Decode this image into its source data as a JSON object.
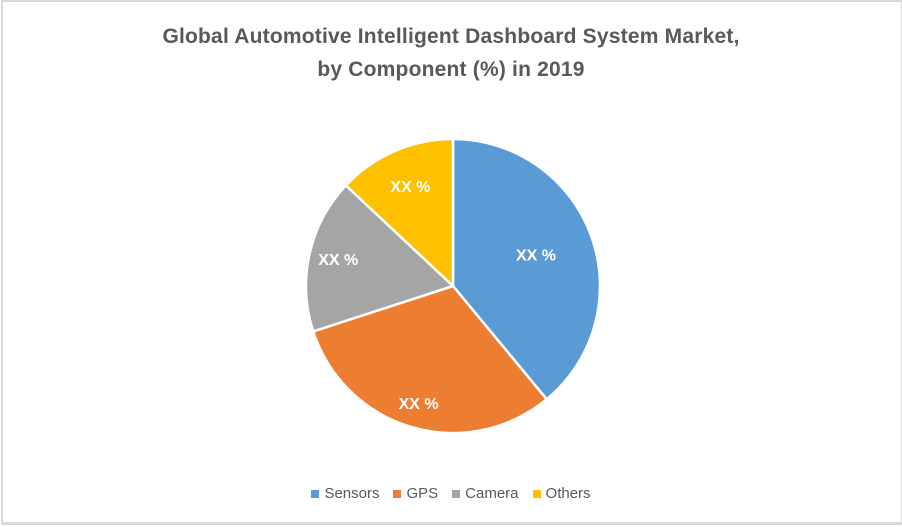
{
  "chart": {
    "title_line1": "Global Automotive Intelligent Dashboard System Market,",
    "title_line2": "by Component (%) in 2019",
    "title_color": "#595959"
  },
  "chart_data": {
    "type": "pie",
    "title": "Global Automotive Intelligent Dashboard System Market, by Component (%) in 2019",
    "legend_position": "bottom",
    "start_angle_deg": 0,
    "direction": "clockwise",
    "slice_border_color": "#ffffff",
    "label_text_color": "#ffffff",
    "values_are_estimated_from_angles": true,
    "slices": [
      {
        "name": "Sensors",
        "value_pct": 39,
        "label": "XX %",
        "color": "#5B9BD5"
      },
      {
        "name": "GPS",
        "value_pct": 31,
        "label": "XX %",
        "color": "#ED7D31"
      },
      {
        "name": "Camera",
        "value_pct": 17,
        "label": "XX %",
        "color": "#A5A5A5"
      },
      {
        "name": "Others",
        "value_pct": 13,
        "label": "XX %",
        "color": "#FFC000"
      }
    ]
  }
}
